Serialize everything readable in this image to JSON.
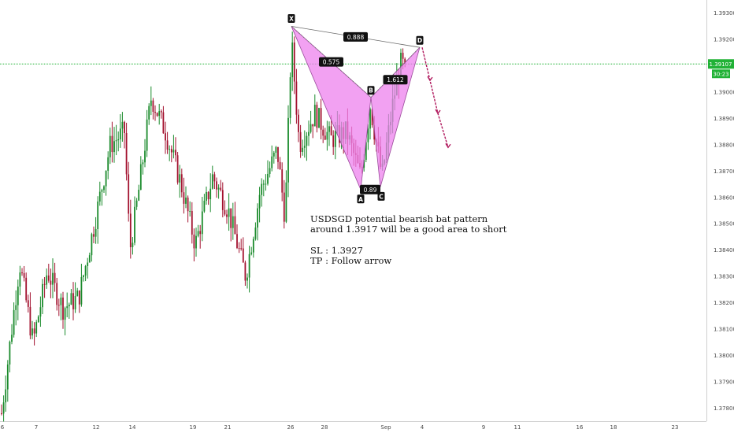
{
  "chart_data": {
    "type": "candlestick",
    "symbol": "USDSGD",
    "x_ticks": [
      "6",
      "7",
      "12",
      "14",
      "19",
      "21",
      "26",
      "28",
      "Sep",
      "4",
      "9",
      "11",
      "16",
      "18",
      "23"
    ],
    "y_ticks": [
      "1.39300",
      "1.39200",
      "1.39000",
      "1.38900",
      "1.38800",
      "1.38700",
      "1.38600",
      "1.38500",
      "1.38400",
      "1.38300",
      "1.38200",
      "1.38100",
      "1.38000",
      "1.37900",
      "1.37800"
    ],
    "ylim": [
      1.3775,
      1.3935
    ],
    "current_price": {
      "label": "1.39107",
      "countdown": "30:23",
      "value": 1.39107
    },
    "pattern": {
      "name": "bearish bat",
      "points": [
        {
          "label": "X",
          "value": 1.3925
        },
        {
          "label": "A",
          "value": 1.3863
        },
        {
          "label": "B",
          "value": 1.3898
        },
        {
          "label": "C",
          "value": 1.3864
        },
        {
          "label": "D",
          "value": 1.3917
        }
      ],
      "ratios": [
        {
          "label": "0.575",
          "leg": "XB"
        },
        {
          "label": "0.888",
          "leg": "XD"
        },
        {
          "label": "0.89",
          "leg": "AC"
        },
        {
          "label": "1.612",
          "leg": "BD"
        }
      ]
    },
    "projection": {
      "start": 1.3917,
      "end": 1.3879,
      "color": "#b0185c"
    },
    "colors": {
      "up": "#1a8a2b",
      "down": "#a3122f",
      "pattern_fill": "#ee82ee",
      "price_line": "#21b236"
    }
  },
  "annotation": {
    "line1": "USDSGD potential bearish bat pattern",
    "line2": "around 1.3917 will be a good area to short",
    "sl": "SL : 1.3927",
    "tp": "TP : Follow arrow"
  }
}
